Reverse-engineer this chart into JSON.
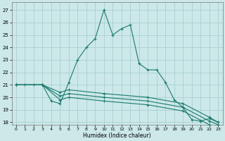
{
  "title": "",
  "xlabel": "Humidex (Indice chaleur)",
  "bg_color": "#cce8e8",
  "grid_color": "#aacfcf",
  "line_color": "#1a7a6e",
  "xlim": [
    -0.5,
    23.5
  ],
  "ylim": [
    17.8,
    27.6
  ],
  "yticks": [
    18,
    19,
    20,
    21,
    22,
    23,
    24,
    25,
    26,
    27
  ],
  "xticks": [
    0,
    1,
    2,
    3,
    4,
    5,
    6,
    7,
    8,
    9,
    10,
    11,
    12,
    13,
    14,
    15,
    16,
    17,
    18,
    19,
    20,
    21,
    22,
    23
  ],
  "series": [
    {
      "x": [
        0,
        1,
        2,
        3,
        4,
        5,
        6,
        7,
        8,
        9,
        10,
        11,
        12,
        13,
        14,
        15,
        16,
        17,
        18,
        19,
        20,
        21,
        22,
        23
      ],
      "y": [
        21,
        21,
        21,
        21,
        19.7,
        19.5,
        21.2,
        23,
        24,
        24.7,
        27,
        25,
        25.5,
        25.8,
        22.7,
        22.2,
        22.2,
        21.2,
        19.8,
        19.2,
        18.2,
        18.1,
        18.3,
        18.0
      ]
    },
    {
      "x": [
        0,
        3,
        5,
        6,
        10,
        15,
        19,
        22,
        23
      ],
      "y": [
        21,
        21,
        20.4,
        20.6,
        20.3,
        20.0,
        19.5,
        18.4,
        18.0
      ]
    },
    {
      "x": [
        0,
        3,
        5,
        6,
        10,
        15,
        19,
        22,
        23
      ],
      "y": [
        21,
        21,
        20.1,
        20.3,
        20.0,
        19.7,
        19.2,
        18.1,
        17.8
      ]
    },
    {
      "x": [
        0,
        3,
        5,
        6,
        10,
        15,
        19,
        22,
        23
      ],
      "y": [
        21,
        21,
        19.8,
        20.0,
        19.7,
        19.4,
        18.9,
        17.8,
        17.5
      ]
    }
  ]
}
